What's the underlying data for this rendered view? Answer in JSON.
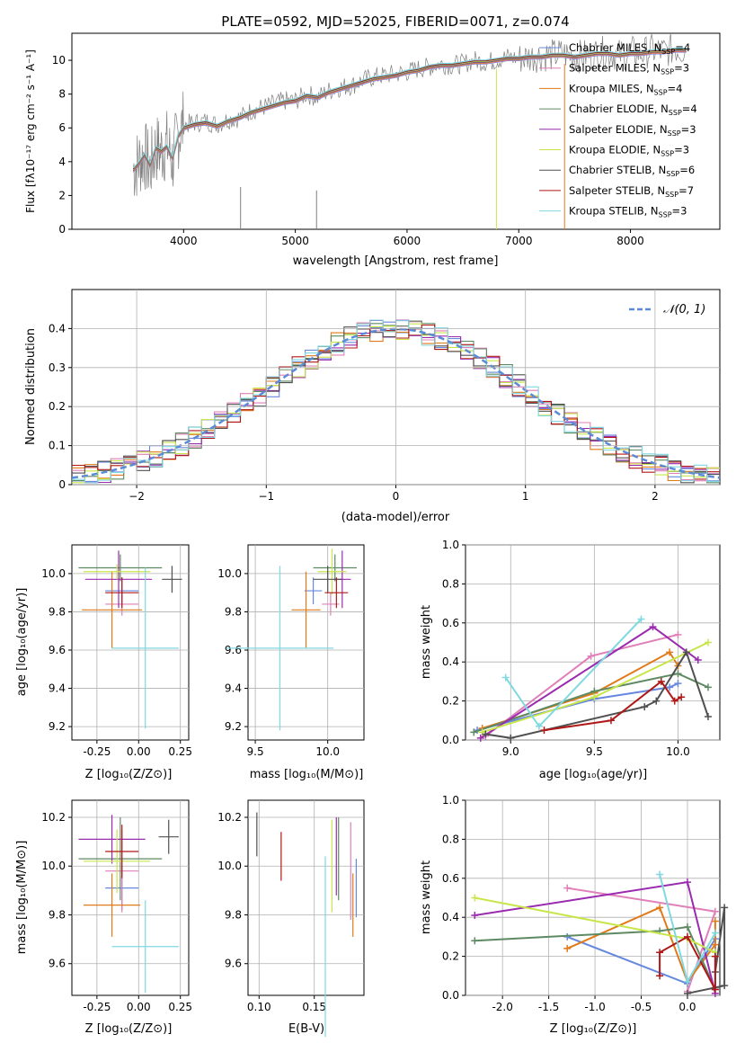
{
  "figure": {
    "title": "PLATE=0592, MJD=52025, FIBERID=0071, z=0.074"
  },
  "legend": {
    "entries": [
      {
        "label": "Chabrier MILES, N_SSP=4",
        "base": "Chabrier MILES, N",
        "sub": "SSP",
        "tail": "=4",
        "color": "#6688dd"
      },
      {
        "label": "Salpeter MILES, N_SSP=3",
        "base": "Salpeter MILES, N",
        "sub": "SSP",
        "tail": "=3",
        "color": "#e07fb8"
      },
      {
        "label": "Kroupa MILES, N_SSP=4",
        "base": "Kroupa MILES, N",
        "sub": "SSP",
        "tail": "=4",
        "color": "#e07a1a"
      },
      {
        "label": "Chabrier ELODIE, N_SSP=4",
        "base": "Chabrier ELODIE, N",
        "sub": "SSP",
        "tail": "=4",
        "color": "#5e8a63"
      },
      {
        "label": "Salpeter ELODIE, N_SSP=3",
        "base": "Salpeter ELODIE, N",
        "sub": "SSP",
        "tail": "=3",
        "color": "#9a2bb0"
      },
      {
        "label": "Kroupa ELODIE, N_SSP=3",
        "base": "Kroupa ELODIE, N",
        "sub": "SSP",
        "tail": "=3",
        "color": "#c8e64a"
      },
      {
        "label": "Chabrier STELIB, N_SSP=6",
        "base": "Chabrier STELIB, N",
        "sub": "SSP",
        "tail": "=6",
        "color": "#505050"
      },
      {
        "label": "Salpeter STELIB, N_SSP=7",
        "base": "Salpeter STELIB, N",
        "sub": "SSP",
        "tail": "=7",
        "color": "#b01818"
      },
      {
        "label": "Kroupa STELIB, N_SSP=3",
        "base": "Kroupa STELIB, N",
        "sub": "SSP",
        "tail": "=3",
        "color": "#80d8e0"
      }
    ]
  },
  "chart_data": [
    {
      "id": "spectrum",
      "type": "line",
      "xlabel": "wavelength [Angstrom, rest frame]",
      "ylabel": "Flux [fλ10⁻¹⁷ erg cm⁻² s⁻¹ A⁻¹]",
      "xlim": [
        3000,
        8800
      ],
      "ylim": [
        0,
        11.6
      ],
      "xticks": [
        4000,
        5000,
        6000,
        7000,
        8000
      ],
      "yticks": [
        0,
        2,
        4,
        6,
        8,
        10
      ],
      "data_color": "#7f7f7f",
      "model_color": "#80d8e0",
      "series": [
        {
          "name": "data",
          "x": [
            3550,
            3600,
            3650,
            3700,
            3750,
            3800,
            3850,
            3900,
            3950,
            4000,
            4100,
            4200,
            4300,
            4400,
            4500,
            4600,
            4700,
            4800,
            4900,
            5000,
            5100,
            5200,
            5300,
            5400,
            5500,
            5600,
            5700,
            5800,
            5900,
            6000,
            6100,
            6200,
            6300,
            6400,
            6500,
            6600,
            6700,
            6800,
            6900,
            7000,
            7100,
            7200,
            7300,
            7400,
            7500,
            7600,
            7700,
            7800,
            7900,
            8000,
            8100,
            8200,
            8300,
            8400,
            8500
          ],
          "y": [
            3.6,
            4.0,
            4.4,
            3.6,
            4.8,
            4.6,
            5.0,
            4.0,
            5.6,
            6.2,
            6.3,
            6.4,
            6.2,
            6.5,
            6.6,
            7.0,
            7.2,
            7.4,
            7.6,
            7.6,
            8.0,
            7.8,
            8.2,
            8.4,
            8.5,
            8.8,
            9.0,
            9.1,
            9.2,
            9.3,
            9.5,
            9.6,
            9.8,
            9.7,
            9.8,
            10.0,
            9.9,
            10.0,
            10.2,
            10.1,
            10.2,
            10.3,
            10.3,
            10.4,
            10.2,
            10.3,
            10.4,
            10.5,
            10.3,
            10.5,
            10.4,
            10.6,
            10.5,
            10.7,
            10.6
          ]
        },
        {
          "name": "model",
          "x": [
            3550,
            3600,
            3650,
            3700,
            3750,
            3800,
            3850,
            3900,
            3950,
            4000,
            4100,
            4200,
            4300,
            4400,
            4500,
            4600,
            4700,
            4800,
            4900,
            5000,
            5100,
            5200,
            5300,
            5400,
            5500,
            5600,
            5700,
            5800,
            5900,
            6000,
            6100,
            6200,
            6300,
            6400,
            6500,
            6600,
            6700,
            6800,
            6900,
            7000,
            7100,
            7200,
            7300,
            7400,
            7500,
            7600,
            7700,
            7800,
            7900,
            8000,
            8100,
            8200,
            8300,
            8400,
            8500
          ],
          "y": [
            3.5,
            3.9,
            4.4,
            3.8,
            4.8,
            4.6,
            4.9,
            4.2,
            5.5,
            6.0,
            6.2,
            6.3,
            6.1,
            6.4,
            6.6,
            6.9,
            7.1,
            7.3,
            7.5,
            7.6,
            7.9,
            7.8,
            8.1,
            8.3,
            8.5,
            8.7,
            8.9,
            9.0,
            9.1,
            9.3,
            9.4,
            9.6,
            9.7,
            9.7,
            9.8,
            9.9,
            9.9,
            10.0,
            10.1,
            10.1,
            10.2,
            10.2,
            10.3,
            10.3,
            10.2,
            10.3,
            10.4,
            10.4,
            10.3,
            10.4,
            10.4,
            10.5,
            10.5,
            10.6,
            10.6
          ]
        }
      ]
    },
    {
      "id": "residuals",
      "type": "line",
      "xlabel": "(data-model)/error",
      "ylabel": "Normed distribution",
      "xlim": [
        -2.5,
        2.5
      ],
      "ylim": [
        0,
        0.5
      ],
      "xticks": [
        -2,
        -1,
        0,
        1,
        2
      ],
      "yticks": [
        0.0,
        0.1,
        0.2,
        0.3,
        0.4
      ],
      "gaussian_label": "𝒩(0, 1)",
      "gaussian_color": "#5b8ad6",
      "hist_bin_width": 0.1
    },
    {
      "id": "z-vs-age",
      "type": "scatter",
      "xlabel": "Z [log₁₀(Z/Z⊙)]",
      "ylabel": "age  [log₁₀(age/yr)]",
      "xlim": [
        -0.4,
        0.3
      ],
      "ylim": [
        9.13,
        10.15
      ],
      "xticks": [
        "-0.25",
        "0.00",
        "0.25"
      ],
      "xtickvals": [
        -0.25,
        0.0,
        0.25
      ],
      "yticks": [
        "9.2",
        "9.4",
        "9.6",
        "9.8",
        "10.0"
      ],
      "ytickvals": [
        9.2,
        9.4,
        9.6,
        9.8,
        10.0
      ],
      "points": [
        {
          "x": -0.1,
          "y": 9.91,
          "xe": 0.1,
          "ye": 0.07
        },
        {
          "x": -0.1,
          "y": 9.84,
          "xe": 0.1,
          "ye": 0.06
        },
        {
          "x": -0.16,
          "y": 9.81,
          "xe": 0.18,
          "ye": 0.2
        },
        {
          "x": -0.11,
          "y": 10.03,
          "xe": 0.25,
          "ye": 0.07
        },
        {
          "x": -0.12,
          "y": 9.97,
          "xe": 0.2,
          "ye": 0.15
        },
        {
          "x": -0.13,
          "y": 10.01,
          "xe": 0.2,
          "ye": 0.04
        },
        {
          "x": 0.2,
          "y": 9.97,
          "xe": 0.06,
          "ye": 0.07
        },
        {
          "x": -0.1,
          "y": 9.9,
          "xe": 0.1,
          "ye": 0.08
        },
        {
          "x": 0.04,
          "y": 9.61,
          "xe": 0.2,
          "ye": 0.42
        }
      ]
    },
    {
      "id": "mass-vs-age",
      "type": "scatter",
      "xlabel": "mass [log₁₀(M/M⊙)]",
      "xlim": [
        9.45,
        10.25
      ],
      "ylim": [
        9.13,
        10.15
      ],
      "xticks": [
        "9.5",
        "10.0"
      ],
      "xtickvals": [
        9.5,
        10.0
      ],
      "yticks": [
        "9.2",
        "9.4",
        "9.6",
        "9.8",
        "10.0"
      ],
      "ytickvals": [
        9.2,
        9.4,
        9.6,
        9.8,
        10.0
      ],
      "points": [
        {
          "x": 9.9,
          "y": 9.91,
          "xe": 0.06,
          "ye": 0.07
        },
        {
          "x": 10.02,
          "y": 9.84,
          "xe": 0.06,
          "ye": 0.06
        },
        {
          "x": 9.85,
          "y": 9.81,
          "xe": 0.1,
          "ye": 0.2
        },
        {
          "x": 10.05,
          "y": 10.03,
          "xe": 0.15,
          "ye": 0.07
        },
        {
          "x": 10.1,
          "y": 9.97,
          "xe": 0.06,
          "ye": 0.15
        },
        {
          "x": 10.03,
          "y": 10.01,
          "xe": 0.1,
          "ye": 0.12
        },
        {
          "x": 10.0,
          "y": 9.97,
          "xe": 0.1,
          "ye": 0.07
        },
        {
          "x": 10.06,
          "y": 9.9,
          "xe": 0.08,
          "ye": 0.08
        },
        {
          "x": 9.67,
          "y": 9.61,
          "xe": 0.37,
          "ye": 0.43
        }
      ]
    },
    {
      "id": "age-vs-weight",
      "type": "line",
      "xlabel": "age  [log₁₀(age/yr)]",
      "ylabel": "mass weight",
      "xlim": [
        8.73,
        10.25
      ],
      "ylim": [
        0,
        1.0
      ],
      "xticks": [
        "9.0",
        "9.5",
        "10.0"
      ],
      "xtickvals": [
        9.0,
        9.5,
        10.0
      ],
      "yticks": [
        "0.0",
        "0.2",
        "0.4",
        "0.6",
        "0.8",
        "1.0"
      ],
      "ytickvals": [
        0,
        0.2,
        0.4,
        0.6,
        0.8,
        1.0
      ],
      "series": [
        {
          "x": [
            8.8,
            9.5,
            9.95,
            10.0
          ],
          "y": [
            0.05,
            0.21,
            0.27,
            0.29
          ]
        },
        {
          "x": [
            8.85,
            9.48,
            10.0
          ],
          "y": [
            0.02,
            0.43,
            0.54
          ]
        },
        {
          "x": [
            8.83,
            9.5,
            9.95,
            10.0
          ],
          "y": [
            0.06,
            0.24,
            0.45,
            0.38
          ]
        },
        {
          "x": [
            8.78,
            9.5,
            10.0,
            10.18
          ],
          "y": [
            0.04,
            0.25,
            0.34,
            0.27
          ]
        },
        {
          "x": [
            8.82,
            9.85,
            10.12
          ],
          "y": [
            0.01,
            0.58,
            0.41
          ]
        },
        {
          "x": [
            8.83,
            9.5,
            10.18
          ],
          "y": [
            0.04,
            0.22,
            0.5
          ]
        },
        {
          "x": [
            8.85,
            9.0,
            9.8,
            9.87,
            10.05,
            10.18
          ],
          "y": [
            0.03,
            0.01,
            0.17,
            0.2,
            0.45,
            0.12
          ]
        },
        {
          "x": [
            9.2,
            9.6,
            9.9,
            9.98,
            10.02
          ],
          "y": [
            0.05,
            0.1,
            0.3,
            0.2,
            0.22
          ]
        },
        {
          "x": [
            8.97,
            9.17,
            9.78
          ],
          "y": [
            0.32,
            0.07,
            0.62
          ]
        }
      ]
    },
    {
      "id": "z-vs-mass",
      "type": "scatter",
      "xlabel": "Z [log₁₀(Z/Z⊙)]",
      "ylabel": "mass [log₁₀(M/M⊙)]",
      "xlim": [
        -0.4,
        0.3
      ],
      "ylim": [
        9.47,
        10.27
      ],
      "xticks": [
        "-0.25",
        "0.00",
        "0.25"
      ],
      "xtickvals": [
        -0.25,
        0.0,
        0.25
      ],
      "yticks": [
        "9.6",
        "9.8",
        "10.0",
        "10.2"
      ],
      "ytickvals": [
        9.6,
        9.8,
        10.0,
        10.2
      ],
      "points": [
        {
          "x": -0.1,
          "y": 9.91,
          "xe": 0.1,
          "ye": 0.09
        },
        {
          "x": -0.1,
          "y": 9.98,
          "xe": 0.1,
          "ye": 0.17
        },
        {
          "x": -0.16,
          "y": 9.84,
          "xe": 0.17,
          "ye": 0.13
        },
        {
          "x": -0.11,
          "y": 10.03,
          "xe": 0.25,
          "ye": 0.17
        },
        {
          "x": -0.16,
          "y": 10.11,
          "xe": 0.2,
          "ye": 0.1
        },
        {
          "x": -0.13,
          "y": 10.02,
          "xe": 0.2,
          "ye": 0.13
        },
        {
          "x": 0.18,
          "y": 10.12,
          "xe": 0.06,
          "ye": 0.07
        },
        {
          "x": -0.1,
          "y": 10.06,
          "xe": 0.1,
          "ye": 0.11
        },
        {
          "x": 0.04,
          "y": 9.67,
          "xe": 0.2,
          "ye": 0.19
        }
      ]
    },
    {
      "id": "ebv-vs-mass",
      "type": "scatter",
      "xlabel": "E(B-V)",
      "xlim": [
        0.09,
        0.195
      ],
      "ylim": [
        9.47,
        10.27
      ],
      "xticks": [
        "0.10",
        "0.15"
      ],
      "xtickvals": [
        0.1,
        0.15
      ],
      "yticks": [
        "9.6",
        "9.8",
        "10.0",
        "10.2"
      ],
      "ytickvals": [
        9.6,
        9.8,
        10.0,
        10.2
      ],
      "points": [
        {
          "x": 0.188,
          "y": 9.91,
          "ye": 0.12
        },
        {
          "x": 0.183,
          "y": 9.98,
          "ye": 0.2
        },
        {
          "x": 0.185,
          "y": 9.84,
          "ye": 0.13
        },
        {
          "x": 0.172,
          "y": 10.03,
          "ye": 0.17
        },
        {
          "x": 0.17,
          "y": 10.04,
          "ye": 0.16
        },
        {
          "x": 0.166,
          "y": 10.0,
          "ye": 0.19
        },
        {
          "x": 0.098,
          "y": 10.13,
          "ye": 0.09
        },
        {
          "x": 0.12,
          "y": 10.04,
          "ye": 0.1
        },
        {
          "x": 0.16,
          "y": 9.67,
          "ye": 0.37
        }
      ]
    },
    {
      "id": "z-vs-weight",
      "type": "line",
      "xlabel": "Z [log₁₀(Z/Z⊙)]",
      "ylabel": "mass weight",
      "xlim": [
        -2.4,
        0.35
      ],
      "ylim": [
        0,
        1.0
      ],
      "xticks": [
        "-2.0",
        "-1.5",
        "-1.0",
        "-0.5",
        "0.0"
      ],
      "xtickvals": [
        -2.0,
        -1.5,
        -1.0,
        -0.5,
        0.0
      ],
      "yticks": [
        "0.0",
        "0.2",
        "0.4",
        "0.6",
        "0.8",
        "1.0"
      ],
      "ytickvals": [
        0,
        0.2,
        0.4,
        0.6,
        0.8,
        1.0
      ],
      "series": [
        {
          "x": [
            -1.3,
            0.0,
            0.3,
            0.3
          ],
          "y": [
            0.3,
            0.06,
            0.29,
            0.04
          ]
        },
        {
          "x": [
            -1.3,
            0.3,
            0.0
          ],
          "y": [
            0.55,
            0.43,
            0.02
          ]
        },
        {
          "x": [
            -1.3,
            -0.3,
            0.0,
            0.3,
            0.3
          ],
          "y": [
            0.24,
            0.45,
            0.07,
            0.26,
            0.38
          ]
        },
        {
          "x": [
            -2.3,
            -0.3,
            0.0,
            0.3
          ],
          "y": [
            0.28,
            0.33,
            0.35,
            0.03
          ]
        },
        {
          "x": [
            -2.3,
            0.0,
            0.3
          ],
          "y": [
            0.41,
            0.58,
            0.01
          ]
        },
        {
          "x": [
            -2.3,
            0.0,
            0.3
          ],
          "y": [
            0.5,
            0.29,
            0.22
          ]
        },
        {
          "x": [
            0.0,
            0.4,
            0.4,
            0.3
          ],
          "y": [
            0.01,
            0.05,
            0.45,
            0.12
          ]
        },
        {
          "x": [
            -0.3,
            -0.3,
            0.0,
            0.3,
            0.3
          ],
          "y": [
            0.1,
            0.22,
            0.3,
            0.03,
            0.2
          ]
        },
        {
          "x": [
            -0.3,
            0.0,
            0.3
          ],
          "y": [
            0.62,
            0.07,
            0.32
          ]
        }
      ]
    }
  ]
}
